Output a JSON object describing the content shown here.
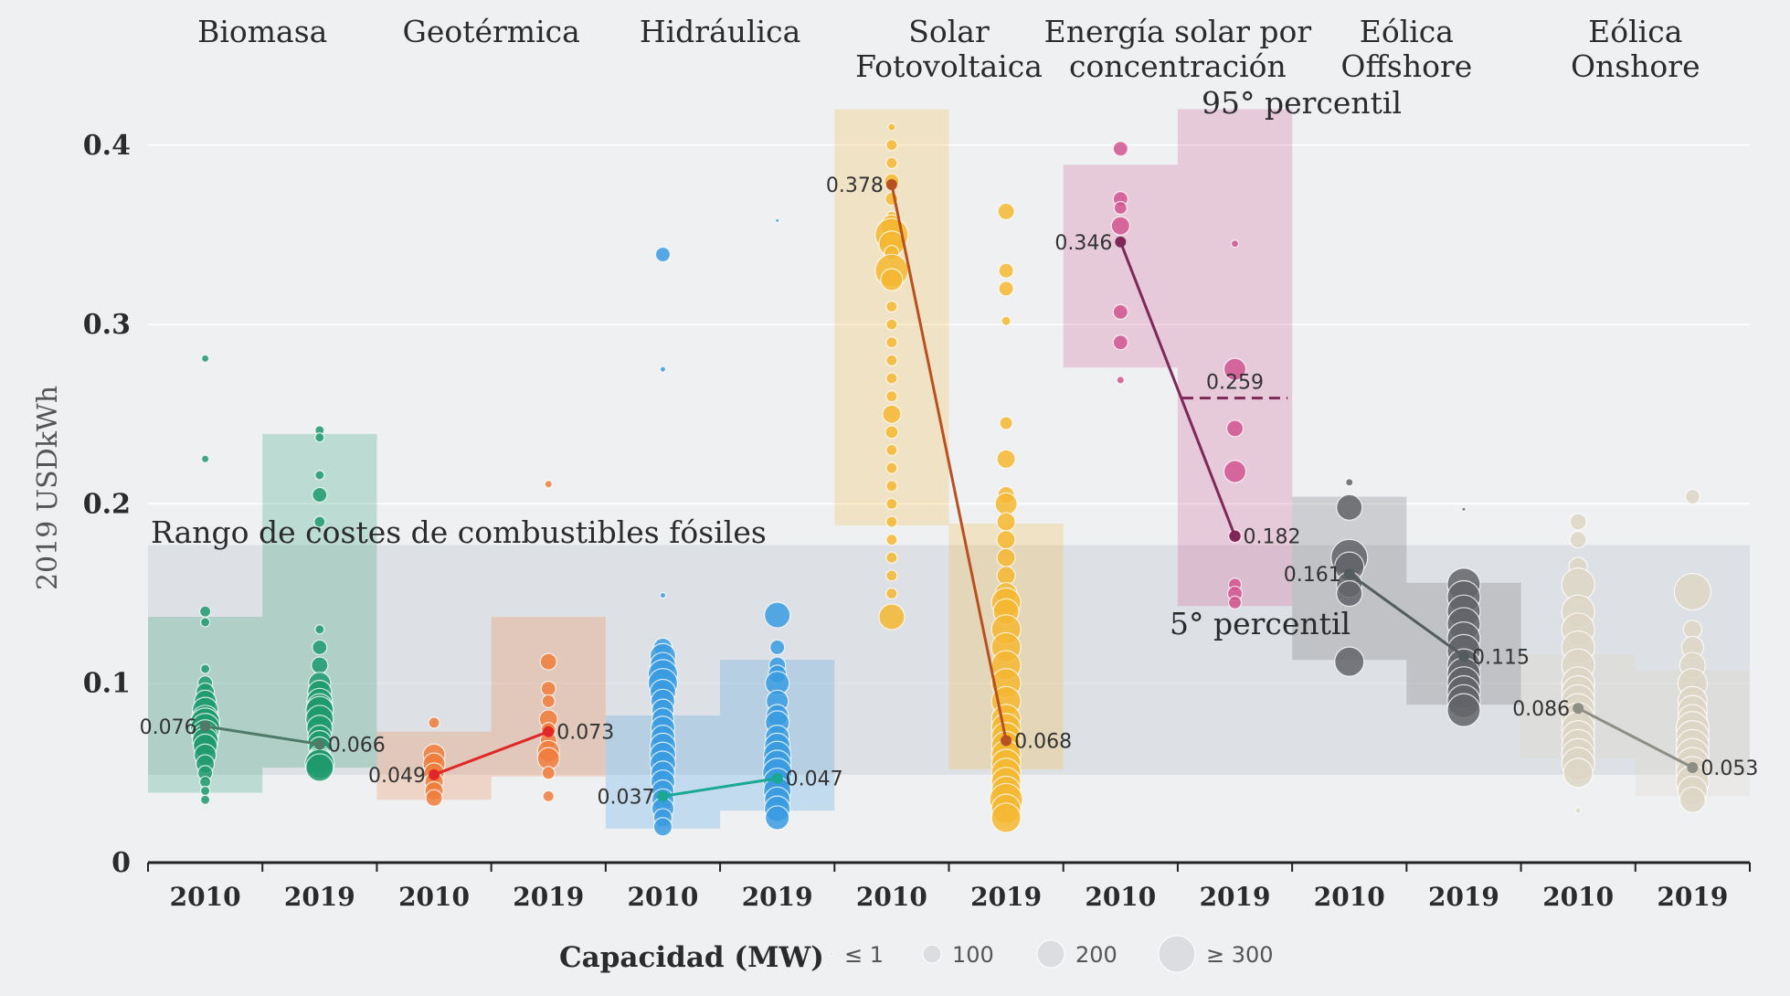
{
  "chart_data": {
    "type": "scatter",
    "ylabel": "2019 USDkWh",
    "yticks": [
      "0",
      "0.1",
      "0.2",
      "0.3",
      "0.4"
    ],
    "ylim": [
      0,
      0.42
    ],
    "grid": true,
    "fossil_range": {
      "label": "Rango de costes de combustibles fósiles",
      "low": 0.049,
      "high": 0.177
    },
    "annotations": {
      "p95": "95° percentil",
      "p5": "5° percentil"
    },
    "series": [
      {
        "name_lines": [
          "Biomasa"
        ],
        "color": "#1f9a6e",
        "line_color": "#4f7a68",
        "years": [
          "2010",
          "2019"
        ],
        "p5": [
          0.039,
          0.053
        ],
        "p95": [
          0.137,
          0.239
        ],
        "avg": [
          0.076,
          0.066
        ],
        "avg_labels": [
          "0.076",
          "0.066"
        ],
        "bubbles": [
          [
            0.281,
            0.225,
            0.14,
            0.134,
            0.108,
            0.1,
            0.095,
            0.09,
            0.085,
            0.08,
            0.078,
            0.075,
            0.072,
            0.07,
            0.068,
            0.065,
            0.06,
            0.055,
            0.05,
            0.045,
            0.04,
            0.035
          ],
          [
            0.241,
            0.237,
            0.216,
            0.205,
            0.19,
            0.13,
            0.12,
            0.11,
            0.1,
            0.095,
            0.09,
            0.087,
            0.085,
            0.08,
            0.075,
            0.07,
            0.067,
            0.064,
            0.06,
            0.057,
            0.055,
            0.053
          ]
        ],
        "sizes": [
          [
            4,
            4,
            6,
            5,
            5,
            8,
            10,
            12,
            14,
            15,
            16,
            16,
            15,
            14,
            14,
            13,
            12,
            10,
            8,
            6,
            5,
            5
          ],
          [
            5,
            5,
            5,
            8,
            6,
            5,
            8,
            9,
            12,
            13,
            14,
            14,
            15,
            15,
            14,
            13,
            13,
            12,
            11,
            14,
            16,
            15
          ]
        ]
      },
      {
        "name_lines": [
          "Geotérmica"
        ],
        "color": "#ef7d3c",
        "line_color": "#e02828",
        "years": [
          "2010",
          "2019"
        ],
        "p5": [
          0.035,
          0.048
        ],
        "p95": [
          0.073,
          0.137
        ],
        "avg": [
          0.049,
          0.073
        ],
        "avg_labels": [
          "0.049",
          "0.073"
        ],
        "bubbles": [
          [
            0.078,
            0.06,
            0.055,
            0.05,
            0.045,
            0.04,
            0.036
          ],
          [
            0.211,
            0.112,
            0.097,
            0.09,
            0.08,
            0.074,
            0.068,
            0.062,
            0.058,
            0.05,
            0.037
          ]
        ],
        "sizes": [
          [
            6,
            12,
            12,
            11,
            10,
            10,
            9
          ],
          [
            4,
            9,
            8,
            7,
            10,
            8,
            9,
            12,
            12,
            7,
            6
          ]
        ]
      },
      {
        "name_lines": [
          "Hidráulica"
        ],
        "color": "#3a9be0",
        "line_color": "#1aa895",
        "years": [
          "2010",
          "2019"
        ],
        "p5": [
          0.019,
          0.029
        ],
        "p95": [
          0.082,
          0.113
        ],
        "avg": [
          0.037,
          0.047
        ],
        "avg_labels": [
          "0.037",
          "0.047"
        ],
        "bubbles": [
          [
            0.339,
            0.275,
            0.149,
            0.12,
            0.115,
            0.11,
            0.105,
            0.1,
            0.095,
            0.09,
            0.085,
            0.08,
            0.075,
            0.07,
            0.065,
            0.06,
            0.055,
            0.05,
            0.045,
            0.04,
            0.035,
            0.03,
            0.025,
            0.02
          ],
          [
            0.358,
            0.138,
            0.12,
            0.11,
            0.105,
            0.1,
            0.09,
            0.082,
            0.078,
            0.07,
            0.065,
            0.06,
            0.055,
            0.05,
            0.045,
            0.04,
            0.035,
            0.03,
            0.025
          ]
        ],
        "sizes": [
          [
            8,
            3,
            3,
            10,
            14,
            14,
            16,
            16,
            14,
            13,
            12,
            12,
            13,
            13,
            14,
            14,
            14,
            13,
            13,
            12,
            12,
            12,
            10,
            10
          ],
          [
            2,
            14,
            8,
            9,
            10,
            13,
            12,
            12,
            13,
            13,
            14,
            15,
            15,
            16,
            15,
            15,
            14,
            14,
            13
          ]
        ]
      },
      {
        "name_lines": [
          "Solar",
          "Fotovoltaica"
        ],
        "color": "#f5b731",
        "line_color": "#b8501f",
        "years": [
          "2010",
          "2019"
        ],
        "p5": [
          0.188,
          0.052
        ],
        "p95": [
          0.42,
          0.189
        ],
        "avg": [
          0.378,
          0.068
        ],
        "avg_labels": [
          "0.378",
          "0.068"
        ],
        "bubbles": [
          [
            0.41,
            0.4,
            0.39,
            0.38,
            0.37,
            0.36,
            0.355,
            0.35,
            0.345,
            0.34,
            0.33,
            0.325,
            0.31,
            0.3,
            0.29,
            0.28,
            0.27,
            0.26,
            0.25,
            0.24,
            0.23,
            0.22,
            0.21,
            0.2,
            0.19,
            0.18,
            0.17,
            0.16,
            0.15,
            0.137
          ],
          [
            0.363,
            0.33,
            0.32,
            0.302,
            0.245,
            0.225,
            0.205,
            0.2,
            0.19,
            0.18,
            0.17,
            0.16,
            0.15,
            0.145,
            0.14,
            0.13,
            0.12,
            0.11,
            0.1,
            0.09,
            0.08,
            0.075,
            0.07,
            0.065,
            0.06,
            0.055,
            0.05,
            0.045,
            0.04,
            0.035,
            0.03,
            0.025
          ]
        ],
        "sizes": [
          [
            4,
            6,
            6,
            8,
            7,
            6,
            12,
            18,
            14,
            8,
            18,
            12,
            6,
            6,
            6,
            6,
            6,
            6,
            10,
            7,
            6,
            6,
            6,
            6,
            6,
            6,
            6,
            6,
            6,
            14
          ],
          [
            9,
            8,
            8,
            5,
            7,
            10,
            9,
            12,
            10,
            10,
            10,
            10,
            12,
            16,
            14,
            16,
            16,
            16,
            16,
            16,
            16,
            16,
            16,
            16,
            16,
            16,
            16,
            16,
            16,
            18,
            16,
            16
          ]
        ]
      },
      {
        "name_lines": [
          "Energía solar por",
          "concentración"
        ],
        "color": "#d1558f",
        "line_color": "#7d2857",
        "years": [
          "2010",
          "2019"
        ],
        "p5": [
          0.276,
          0.143
        ],
        "p95": [
          0.389,
          0.42
        ],
        "avg": [
          0.346,
          0.182
        ],
        "avg_labels": [
          "0.346",
          "0.182"
        ],
        "dashed": {
          "index": 1,
          "value": 0.259,
          "label": "0.259"
        },
        "bubbles": [
          [
            0.398,
            0.37,
            0.365,
            0.355,
            0.307,
            0.29,
            0.269
          ],
          [
            0.345,
            0.275,
            0.242,
            0.218,
            0.182,
            0.155,
            0.15,
            0.145
          ]
        ],
        "sizes": [
          [
            8,
            8,
            7,
            10,
            8,
            8,
            4
          ],
          [
            4,
            12,
            9,
            12,
            7,
            7,
            8,
            7
          ]
        ]
      },
      {
        "name_lines": [
          "Eólica",
          "Offshore"
        ],
        "color": "#636468",
        "line_color": "#535d5d",
        "years": [
          "2010",
          "2019"
        ],
        "p5": [
          0.113,
          0.088
        ],
        "p95": [
          0.204,
          0.156
        ],
        "avg": [
          0.161,
          0.115
        ],
        "avg_labels": [
          "0.161",
          "0.115"
        ],
        "bubbles": [
          [
            0.212,
            0.198,
            0.17,
            0.165,
            0.155,
            0.15,
            0.112
          ],
          [
            0.197,
            0.155,
            0.148,
            0.14,
            0.133,
            0.125,
            0.118,
            0.11,
            0.105,
            0.1,
            0.095,
            0.09,
            0.085
          ]
        ],
        "sizes": [
          [
            4,
            14,
            20,
            16,
            14,
            14,
            16
          ],
          [
            2,
            18,
            18,
            18,
            18,
            18,
            18,
            18,
            18,
            18,
            18,
            18,
            18
          ]
        ]
      },
      {
        "name_lines": [
          "Eólica",
          "Onshore"
        ],
        "color": "#ddd6c5",
        "line_color": "#8d8f85",
        "years": [
          "2010",
          "2019"
        ],
        "p5": [
          0.058,
          0.037
        ],
        "p95": [
          0.116,
          0.107
        ],
        "avg": [
          0.086,
          0.053
        ],
        "avg_labels": [
          "0.086",
          "0.053"
        ],
        "bubbles": [
          [
            0.19,
            0.18,
            0.165,
            0.155,
            0.14,
            0.13,
            0.12,
            0.11,
            0.1,
            0.095,
            0.09,
            0.085,
            0.08,
            0.075,
            0.07,
            0.065,
            0.06,
            0.055,
            0.05,
            0.029
          ],
          [
            0.204,
            0.151,
            0.13,
            0.12,
            0.11,
            0.1,
            0.09,
            0.085,
            0.08,
            0.075,
            0.07,
            0.065,
            0.06,
            0.055,
            0.05,
            0.045,
            0.04,
            0.035
          ]
        ],
        "sizes": [
          [
            9,
            9,
            10,
            18,
            18,
            18,
            18,
            18,
            18,
            18,
            18,
            18,
            18,
            18,
            18,
            18,
            18,
            18,
            16,
            3
          ],
          [
            8,
            20,
            10,
            12,
            14,
            16,
            16,
            16,
            16,
            18,
            18,
            18,
            18,
            18,
            18,
            18,
            16,
            14
          ]
        ]
      }
    ]
  },
  "legend": {
    "title": "Capacidad (MW)",
    "items": [
      {
        "label": "≤ 1",
        "r": 2
      },
      {
        "label": "100",
        "r": 10
      },
      {
        "label": "200",
        "r": 15
      },
      {
        "label": "≥ 300",
        "r": 20
      }
    ]
  }
}
